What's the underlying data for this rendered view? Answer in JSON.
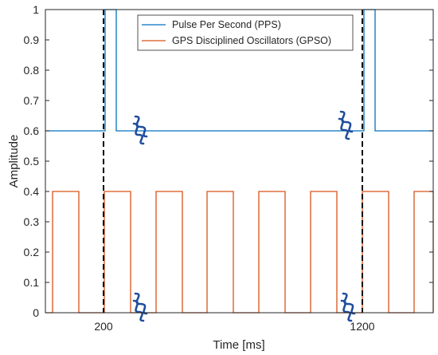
{
  "chart_data": {
    "type": "line",
    "xlabel": "Time [ms]",
    "ylabel": "Amplitude",
    "xticks": [
      {
        "label": "200"
      },
      {
        "label": "1200"
      }
    ],
    "ylim": [
      0,
      1
    ],
    "yticks": [
      0,
      0.1,
      0.2,
      0.3,
      0.4,
      0.5,
      0.6,
      0.7,
      0.8,
      0.9,
      1
    ],
    "legend_position": "top-right",
    "series": [
      {
        "name": "Pulse Per Second (PPS)",
        "color": "#0072BD",
        "style": "step",
        "levels": {
          "low": 0.6,
          "high": 1.0
        },
        "description_points": [
          [
            0.6,
            0.6
          ],
          [
            1.0,
            1.0
          ]
        ]
      },
      {
        "name": "GPS Disciplined Oscillators (GPSO)",
        "color": "#D95319",
        "style": "square-wave",
        "levels": {
          "low": 0.0,
          "high": 0.4
        }
      }
    ],
    "markers": {
      "sync_lines": "dashed vertical lines at the 200 ms and 1200 ms ticks",
      "break_symbols": "axis-break symbols between the two ticks",
      "break_color": "#1F4E9C",
      "sync_line_color": "#000000"
    },
    "grid": false
  }
}
